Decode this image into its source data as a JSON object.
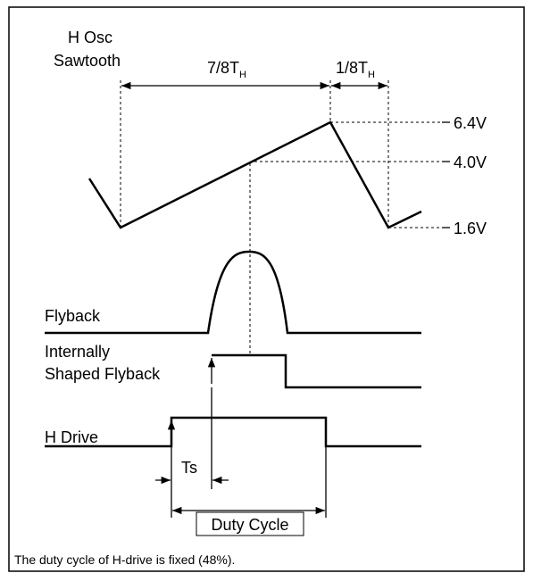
{
  "labels": {
    "osc_1": "H Osc",
    "osc_2": "Sawtooth",
    "seven_eighths": "7/8T",
    "seven_eighths_sub": "H",
    "one_eighth": "1/8T",
    "one_eighth_sub": "H",
    "v_high": "6.4V",
    "v_mid": "4.0V",
    "v_low": "1.6V",
    "flyback": "Flyback",
    "shaped_1": "Internally",
    "shaped_2": "Shaped Flyback",
    "hdrive": "H Drive",
    "ts": "Ts",
    "duty": "Duty Cycle"
  },
  "caption": "The duty cycle of H-drive is fixed (48%)."
}
